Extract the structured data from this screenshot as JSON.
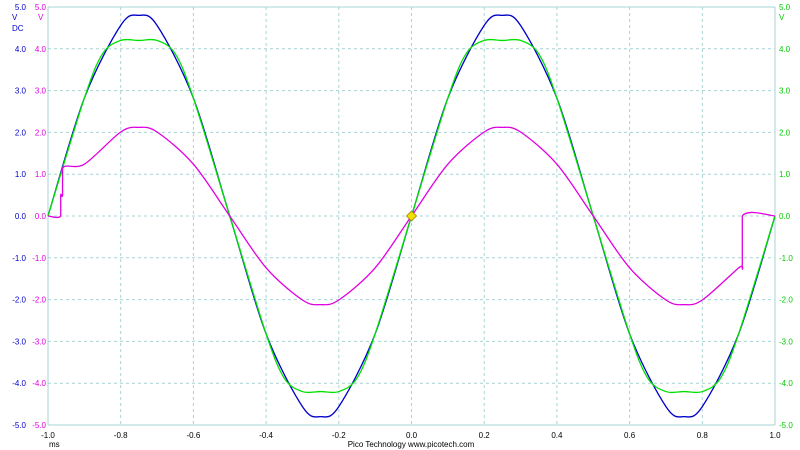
{
  "chart_data": {
    "type": "line",
    "x_unit": "ms",
    "xlim": [
      -1.0,
      1.0
    ],
    "ylim": [
      -5.0,
      5.0
    ],
    "grid": true,
    "x_ticks": [
      "-1.0",
      "-0.8",
      "-0.6",
      "-0.4",
      "-0.2",
      "0.0",
      "0.2",
      "0.4",
      "0.6",
      "0.8",
      "1.0"
    ],
    "y_ticks": [
      "5.0",
      "4.0",
      "3.0",
      "2.0",
      "1.0",
      "0.0",
      "-1.0",
      "-2.0",
      "-3.0",
      "-4.0",
      "-5.0"
    ],
    "left_axis_units": {
      "axis_blue": "V",
      "axis_blue_coupling": "DC",
      "axis_magenta": "V"
    },
    "right_axis_unit": "V",
    "footer": "Pico Technology   www.picotech.com",
    "trigger_marker": {
      "x": 0.0,
      "y": 0.0,
      "color": "#f0e000"
    },
    "series": [
      {
        "color": "#0000c8",
        "x": [
          -1.0,
          -0.9,
          -0.8,
          -0.75,
          -0.7,
          -0.6,
          -0.5,
          -0.4,
          -0.3,
          -0.25,
          -0.2,
          -0.1,
          0.0,
          0.1,
          0.2,
          0.25,
          0.3,
          0.4,
          0.5,
          0.6,
          0.7,
          0.75,
          0.8,
          0.9,
          1.0
        ],
        "y": [
          0.0,
          2.82,
          4.56,
          4.8,
          4.56,
          2.82,
          0.0,
          -2.82,
          -4.56,
          -4.8,
          -4.56,
          -2.82,
          0.0,
          2.82,
          4.56,
          4.8,
          4.56,
          2.82,
          0.0,
          -2.82,
          -4.56,
          -4.8,
          -4.56,
          -2.82,
          0.0
        ]
      },
      {
        "color": "#00e000",
        "x": [
          -1.0,
          -0.9,
          -0.85,
          -0.8,
          -0.75,
          -0.7,
          -0.65,
          -0.6,
          -0.5,
          -0.4,
          -0.35,
          -0.3,
          -0.25,
          -0.2,
          -0.15,
          -0.1,
          0.0,
          0.1,
          0.15,
          0.2,
          0.25,
          0.3,
          0.35,
          0.4,
          0.5,
          0.6,
          0.65,
          0.7,
          0.75,
          0.8,
          0.85,
          0.9,
          1.0
        ],
        "y": [
          0.0,
          2.82,
          3.88,
          4.2,
          4.2,
          4.2,
          3.88,
          2.82,
          0.0,
          -2.82,
          -3.88,
          -4.2,
          -4.2,
          -4.2,
          -3.88,
          -2.82,
          0.0,
          2.82,
          3.88,
          4.2,
          4.2,
          4.2,
          3.88,
          2.82,
          0.0,
          -2.82,
          -3.88,
          -4.2,
          -4.2,
          -4.2,
          -3.88,
          -2.82,
          0.0
        ]
      },
      {
        "color": "#e000e0",
        "x": [
          -1.0,
          -0.965,
          -0.965,
          -0.96,
          -0.96,
          -0.9,
          -0.8,
          -0.75,
          -0.7,
          -0.6,
          -0.5,
          -0.4,
          -0.3,
          -0.25,
          -0.2,
          -0.1,
          0.0,
          0.1,
          0.2,
          0.25,
          0.3,
          0.4,
          0.5,
          0.6,
          0.7,
          0.75,
          0.8,
          0.9,
          0.91,
          0.91,
          1.0
        ],
        "y": [
          0.0,
          0.0,
          0.5,
          0.5,
          1.15,
          1.24,
          2.01,
          2.12,
          2.01,
          1.24,
          0.0,
          -1.24,
          -2.01,
          -2.12,
          -2.01,
          -1.24,
          0.0,
          1.24,
          2.01,
          2.12,
          2.01,
          1.24,
          0.0,
          -1.24,
          -2.01,
          -2.12,
          -2.01,
          -1.24,
          -1.2,
          0.0,
          0.0
        ]
      }
    ]
  },
  "colors": {
    "grid": "#a8d4d4",
    "axis_blue": "#0000c8",
    "axis_magenta": "#e000e0",
    "axis_green": "#00cc00",
    "x_ticks": "#000000"
  }
}
